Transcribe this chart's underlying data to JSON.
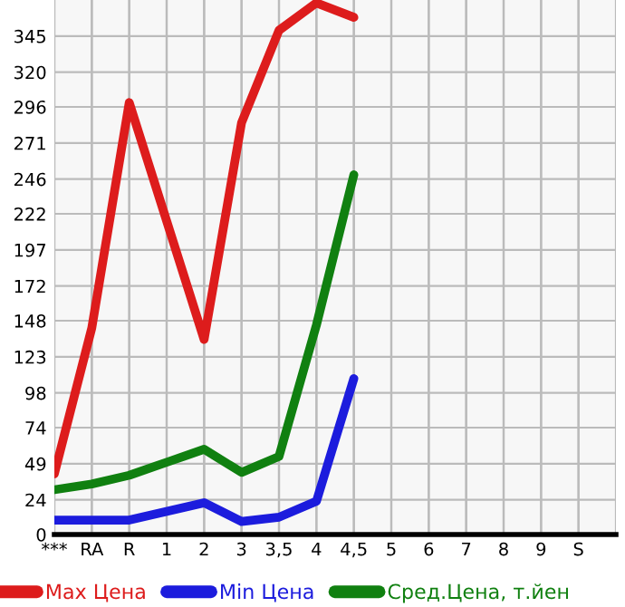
{
  "chart_data": {
    "type": "line",
    "categories": [
      "***",
      "RA",
      "R",
      "1",
      "2",
      "3",
      "3,5",
      "4",
      "4,5",
      "5",
      "6",
      "7",
      "8",
      "9",
      "S"
    ],
    "series": [
      {
        "name": "Max Цена",
        "color": "#dd1c1c",
        "values": [
          42,
          143,
          299,
          217,
          135,
          285,
          349,
          368,
          358,
          null,
          null,
          null,
          null,
          null,
          null
        ]
      },
      {
        "name": "Min Цена",
        "color": "#1c1cdd",
        "values": [
          10,
          10,
          10,
          16,
          22,
          9,
          12,
          23,
          108,
          null,
          null,
          null,
          null,
          null,
          null
        ]
      },
      {
        "name": "Сред.Цена, т.йен",
        "color": "#108010",
        "values": [
          31,
          35,
          41,
          50,
          59,
          43,
          54,
          145,
          249,
          null,
          null,
          null,
          null,
          null,
          null
        ]
      }
    ],
    "ylim": [
      0,
      370
    ],
    "yticks": [
      0,
      24,
      49,
      74,
      98,
      123,
      148,
      172,
      197,
      222,
      246,
      271,
      296,
      320,
      345
    ],
    "grid": true,
    "legend": "bottom",
    "marker": "none",
    "line_style": "solid"
  }
}
